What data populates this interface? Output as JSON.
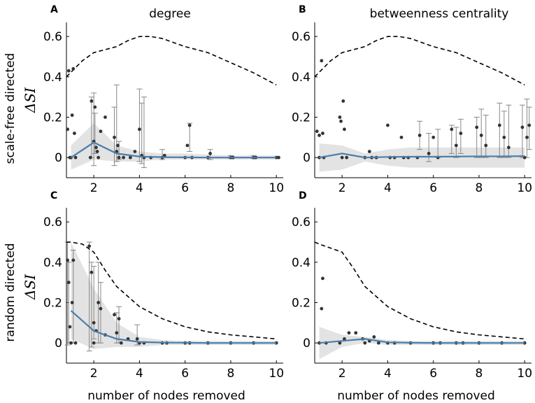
{
  "chart_data": {
    "type": "line",
    "column_titles": [
      "degree",
      "betweenness centrality"
    ],
    "row_labels": [
      "scale-free directed",
      "random directed"
    ],
    "ylabel_math": "ΔSI",
    "xlabel": "number of nodes removed",
    "xlim": [
      0.8,
      10.3
    ],
    "ylim": [
      -0.1,
      0.67
    ],
    "xticks": [
      2,
      4,
      6,
      8,
      10
    ],
    "yticks": [
      0,
      0.2,
      0.4,
      0.6
    ],
    "ytick_labels": [
      "0",
      "0.2",
      "0.4",
      "0.6"
    ],
    "colors": {
      "mean": "#4a7eab",
      "band": "#e3e3e3",
      "points": "#333333",
      "errorbar": "#888888",
      "bound": "#000000"
    },
    "panels": [
      {
        "letter": "A",
        "dashed_upper_bound": {
          "x": [
            0.8,
            1.5,
            2.0,
            3.0,
            3.5,
            4.0,
            4.5,
            5.0,
            5.5,
            6.0,
            7.0,
            8.0,
            9.0,
            10.0
          ],
          "y": [
            0.4,
            0.48,
            0.52,
            0.55,
            0.58,
            0.6,
            0.6,
            0.59,
            0.57,
            0.55,
            0.52,
            0.47,
            0.42,
            0.36
          ]
        },
        "mean": {
          "x": [
            1,
            2,
            3,
            4,
            5,
            6,
            7,
            8,
            9,
            10
          ],
          "y": [
            0.0,
            0.075,
            0.02,
            0.005,
            0.002,
            0.001,
            0.0,
            0.0,
            0.0,
            0.0
          ]
        },
        "band_upper": [
          0.06,
          0.17,
          0.06,
          0.03,
          0.02,
          0.02,
          0.015,
          0.01,
          0.01,
          0.01
        ],
        "band_lower": [
          -0.06,
          -0.01,
          -0.02,
          -0.02,
          -0.01,
          -0.01,
          -0.01,
          -0.01,
          -0.01,
          -0.01
        ],
        "points": [
          [
            0.85,
            0.14
          ],
          [
            0.9,
            0.43
          ],
          [
            1.1,
            0.44
          ],
          [
            1.05,
            0.21
          ],
          [
            1.15,
            0.12
          ],
          [
            1.0,
            0.0
          ],
          [
            0.95,
            0.0
          ],
          [
            1.2,
            0.0
          ],
          [
            1.9,
            0.28
          ],
          [
            2.05,
            0.25
          ],
          [
            2.0,
            0.08
          ],
          [
            2.1,
            0.05
          ],
          [
            1.85,
            0.0
          ],
          [
            2.2,
            0.0
          ],
          [
            2.3,
            0.13
          ],
          [
            2.5,
            0.2
          ],
          [
            2.15,
            0.03
          ],
          [
            2.9,
            0.1
          ],
          [
            3.0,
            0.03
          ],
          [
            3.1,
            0.0
          ],
          [
            3.05,
            0.06
          ],
          [
            3.3,
            0.0
          ],
          [
            3.6,
            0.0
          ],
          [
            3.8,
            0.03
          ],
          [
            4.0,
            0.14
          ],
          [
            4.1,
            0.01
          ],
          [
            4.2,
            0.0
          ],
          [
            4.5,
            0.0
          ],
          [
            5.0,
            0.0
          ],
          [
            5.1,
            0.01
          ],
          [
            6.0,
            0.0
          ],
          [
            6.1,
            0.06
          ],
          [
            6.2,
            0.16
          ],
          [
            6.3,
            0.0
          ],
          [
            7.0,
            0.0
          ],
          [
            7.1,
            0.02
          ],
          [
            8.0,
            0.0
          ],
          [
            8.1,
            0.0
          ],
          [
            9.0,
            0.0
          ],
          [
            9.1,
            0.0
          ],
          [
            10.0,
            0.0
          ],
          [
            10.1,
            0.0
          ]
        ],
        "errorbars": [
          {
            "x": 1.9,
            "lo": 0.0,
            "hi": 0.3
          },
          {
            "x": 2.0,
            "lo": -0.04,
            "hi": 0.32
          },
          {
            "x": 2.05,
            "lo": 0.02,
            "hi": 0.22
          },
          {
            "x": 2.9,
            "lo": -0.04,
            "hi": 0.25
          },
          {
            "x": 3.0,
            "lo": -0.02,
            "hi": 0.36
          },
          {
            "x": 3.1,
            "lo": -0.01,
            "hi": 0.08
          },
          {
            "x": 4.0,
            "lo": -0.02,
            "hi": 0.34
          },
          {
            "x": 4.1,
            "lo": -0.03,
            "hi": 0.27
          },
          {
            "x": 4.2,
            "lo": -0.05,
            "hi": 0.3
          },
          {
            "x": 5.0,
            "lo": -0.01,
            "hi": 0.04
          },
          {
            "x": 6.2,
            "lo": 0.03,
            "hi": 0.17
          },
          {
            "x": 7.1,
            "lo": -0.01,
            "hi": 0.04
          },
          {
            "x": 8.0,
            "lo": -0.005,
            "hi": 0.01
          },
          {
            "x": 9.0,
            "lo": -0.005,
            "hi": 0.01
          }
        ]
      },
      {
        "letter": "B",
        "dashed_upper_bound": {
          "x": [
            0.8,
            1.5,
            2.0,
            3.0,
            3.5,
            4.0,
            4.5,
            5.0,
            5.5,
            6.0,
            7.0,
            8.0,
            9.0,
            10.0
          ],
          "y": [
            0.4,
            0.48,
            0.52,
            0.55,
            0.58,
            0.6,
            0.6,
            0.59,
            0.57,
            0.55,
            0.52,
            0.47,
            0.42,
            0.36
          ]
        },
        "mean": {
          "x": [
            1,
            2,
            3,
            4,
            5,
            6,
            7,
            8,
            9,
            10
          ],
          "y": [
            0.0,
            0.02,
            0.0,
            0.003,
            0.004,
            0.004,
            0.005,
            0.006,
            0.006,
            0.007
          ]
        },
        "band_upper": [
          0.07,
          0.06,
          0.02,
          0.04,
          0.05,
          0.05,
          0.05,
          0.05,
          0.05,
          0.05
        ],
        "band_lower": [
          -0.07,
          -0.06,
          -0.02,
          -0.04,
          -0.05,
          -0.05,
          -0.05,
          -0.05,
          -0.05,
          -0.05
        ],
        "points": [
          [
            0.9,
            0.13
          ],
          [
            1.0,
            0.11
          ],
          [
            1.1,
            0.48
          ],
          [
            1.15,
            0.12
          ],
          [
            1.2,
            0.0
          ],
          [
            1.0,
            0.0
          ],
          [
            1.9,
            0.2
          ],
          [
            1.95,
            0.18
          ],
          [
            2.05,
            0.28
          ],
          [
            2.1,
            0.14
          ],
          [
            2.0,
            0.0
          ],
          [
            2.2,
            0.0
          ],
          [
            3.0,
            0.0
          ],
          [
            3.2,
            0.03
          ],
          [
            3.3,
            0.0
          ],
          [
            3.5,
            0.0
          ],
          [
            4.0,
            0.16
          ],
          [
            4.1,
            0.0
          ],
          [
            4.3,
            0.0
          ],
          [
            4.6,
            0.1
          ],
          [
            4.7,
            0.0
          ],
          [
            4.9,
            0.0
          ],
          [
            5.3,
            0.0
          ],
          [
            5.4,
            0.11
          ],
          [
            5.8,
            0.02
          ],
          [
            6.0,
            0.1
          ],
          [
            6.2,
            0.0
          ],
          [
            6.8,
            0.14
          ],
          [
            7.0,
            0.06
          ],
          [
            7.2,
            0.12
          ],
          [
            7.9,
            0.15
          ],
          [
            8.1,
            0.11
          ],
          [
            8.3,
            0.06
          ],
          [
            8.9,
            0.16
          ],
          [
            9.1,
            0.1
          ],
          [
            9.3,
            0.05
          ],
          [
            9.9,
            0.15
          ],
          [
            10.1,
            0.1
          ],
          [
            10.2,
            0.16
          ],
          [
            10.0,
            0.0
          ]
        ],
        "errorbars": [
          {
            "x": 5.4,
            "lo": 0.04,
            "hi": 0.18
          },
          {
            "x": 5.8,
            "lo": -0.02,
            "hi": 0.12
          },
          {
            "x": 6.2,
            "lo": 0.0,
            "hi": 0.14
          },
          {
            "x": 6.8,
            "lo": 0.02,
            "hi": 0.16
          },
          {
            "x": 7.0,
            "lo": 0.0,
            "hi": 0.15
          },
          {
            "x": 7.2,
            "lo": 0.02,
            "hi": 0.19
          },
          {
            "x": 7.9,
            "lo": 0.0,
            "hi": 0.2
          },
          {
            "x": 8.1,
            "lo": 0.0,
            "hi": 0.24
          },
          {
            "x": 8.3,
            "lo": 0.0,
            "hi": 0.21
          },
          {
            "x": 8.9,
            "lo": 0.0,
            "hi": 0.27
          },
          {
            "x": 9.1,
            "lo": 0.0,
            "hi": 0.23
          },
          {
            "x": 9.3,
            "lo": 0.0,
            "hi": 0.26
          },
          {
            "x": 9.9,
            "lo": 0.0,
            "hi": 0.26
          },
          {
            "x": 10.1,
            "lo": 0.0,
            "hi": 0.29
          },
          {
            "x": 10.2,
            "lo": 0.04,
            "hi": 0.25
          }
        ]
      },
      {
        "letter": "C",
        "dashed_upper_bound": {
          "x": [
            0.8,
            1.0,
            1.5,
            2.0,
            2.5,
            3.0,
            4.0,
            5.0,
            6.0,
            7.0,
            8.0,
            9.0,
            10.0
          ],
          "y": [
            0.5,
            0.5,
            0.49,
            0.45,
            0.36,
            0.28,
            0.18,
            0.12,
            0.08,
            0.055,
            0.04,
            0.03,
            0.02
          ]
        },
        "mean": {
          "x": [
            1,
            2,
            3,
            4,
            5,
            6,
            7,
            8,
            9,
            10
          ],
          "y": [
            0.16,
            0.06,
            0.02,
            0.005,
            0.002,
            0.001,
            0.0,
            0.0,
            0.0,
            0.0
          ]
        },
        "band_upper": [
          0.5,
          0.27,
          0.1,
          0.03,
          0.015,
          0.01,
          0.01,
          0.01,
          0.01,
          0.01
        ],
        "band_lower": [
          0.02,
          -0.03,
          -0.02,
          -0.02,
          -0.01,
          -0.01,
          -0.01,
          -0.01,
          -0.01,
          -0.01
        ],
        "points": [
          [
            0.85,
            0.41
          ],
          [
            0.9,
            0.3
          ],
          [
            0.95,
            0.08
          ],
          [
            1.0,
            0.0
          ],
          [
            1.1,
            0.41
          ],
          [
            1.2,
            0.0
          ],
          [
            1.05,
            0.2
          ],
          [
            1.8,
            0.48
          ],
          [
            1.9,
            0.35
          ],
          [
            2.0,
            0.1
          ],
          [
            2.1,
            0.06
          ],
          [
            2.2,
            0.2
          ],
          [
            2.3,
            0.17
          ],
          [
            2.0,
            0.0
          ],
          [
            2.5,
            0.04
          ],
          [
            2.9,
            0.14
          ],
          [
            3.0,
            0.05
          ],
          [
            3.1,
            0.12
          ],
          [
            3.2,
            0.0
          ],
          [
            3.5,
            0.02
          ],
          [
            3.9,
            0.02
          ],
          [
            4.0,
            0.0
          ],
          [
            4.2,
            0.0
          ],
          [
            5.0,
            0.0
          ],
          [
            5.2,
            0.0
          ],
          [
            6.0,
            0.0
          ],
          [
            6.2,
            0.0
          ],
          [
            7.0,
            0.0
          ],
          [
            8.0,
            0.0
          ],
          [
            9.0,
            0.0
          ],
          [
            10.0,
            0.0
          ]
        ],
        "errorbars": [
          {
            "x": 0.85,
            "lo": -0.01,
            "hi": 0.5
          },
          {
            "x": 0.9,
            "lo": 0.0,
            "hi": 0.4
          },
          {
            "x": 1.1,
            "lo": 0.0,
            "hi": 0.46
          },
          {
            "x": 1.8,
            "lo": -0.04,
            "hi": 0.5
          },
          {
            "x": 1.9,
            "lo": -0.02,
            "hi": 0.4
          },
          {
            "x": 2.0,
            "lo": 0.02,
            "hi": 0.38
          },
          {
            "x": 2.2,
            "lo": 0.0,
            "hi": 0.4
          },
          {
            "x": 2.3,
            "lo": 0.0,
            "hi": 0.3
          },
          {
            "x": 3.0,
            "lo": 0.0,
            "hi": 0.15
          },
          {
            "x": 3.1,
            "lo": 0.0,
            "hi": 0.18
          },
          {
            "x": 3.9,
            "lo": -0.01,
            "hi": 0.09
          }
        ]
      },
      {
        "letter": "D",
        "dashed_upper_bound": {
          "x": [
            0.8,
            1.0,
            1.5,
            2.0,
            2.5,
            3.0,
            4.0,
            5.0,
            6.0,
            7.0,
            8.0,
            9.0,
            10.0
          ],
          "y": [
            0.5,
            0.49,
            0.47,
            0.45,
            0.37,
            0.28,
            0.18,
            0.12,
            0.08,
            0.055,
            0.04,
            0.03,
            0.02
          ]
        },
        "mean": {
          "x": [
            1,
            2,
            3,
            4,
            5,
            6,
            7,
            8,
            9,
            10
          ],
          "y": [
            0.0,
            0.01,
            0.02,
            0.003,
            0.001,
            0.0,
            0.0,
            0.0,
            0.0,
            0.0
          ]
        },
        "band_upper": [
          0.08,
          0.04,
          0.03,
          0.015,
          0.01,
          0.01,
          0.01,
          0.01,
          0.01,
          0.01
        ],
        "band_lower": [
          -0.08,
          -0.02,
          0.0,
          -0.01,
          -0.01,
          -0.01,
          -0.01,
          -0.01,
          -0.01,
          -0.01
        ],
        "points": [
          [
            1.0,
            0.0
          ],
          [
            1.1,
            0.17
          ],
          [
            1.15,
            0.32
          ],
          [
            1.3,
            0.0
          ],
          [
            1.9,
            0.0
          ],
          [
            2.1,
            0.02
          ],
          [
            2.3,
            0.05
          ],
          [
            2.6,
            0.05
          ],
          [
            2.9,
            0.02
          ],
          [
            3.0,
            0.0
          ],
          [
            3.2,
            0.01
          ],
          [
            3.4,
            0.03
          ],
          [
            3.6,
            0.0
          ],
          [
            4.0,
            0.0
          ],
          [
            4.3,
            0.0
          ],
          [
            5.0,
            0.0
          ],
          [
            6.0,
            0.0
          ],
          [
            6.3,
            0.0
          ],
          [
            7.0,
            0.0
          ],
          [
            7.3,
            0.0
          ],
          [
            8.0,
            0.0
          ],
          [
            9.0,
            0.0
          ],
          [
            10.0,
            0.0
          ]
        ],
        "errorbars": []
      }
    ]
  }
}
